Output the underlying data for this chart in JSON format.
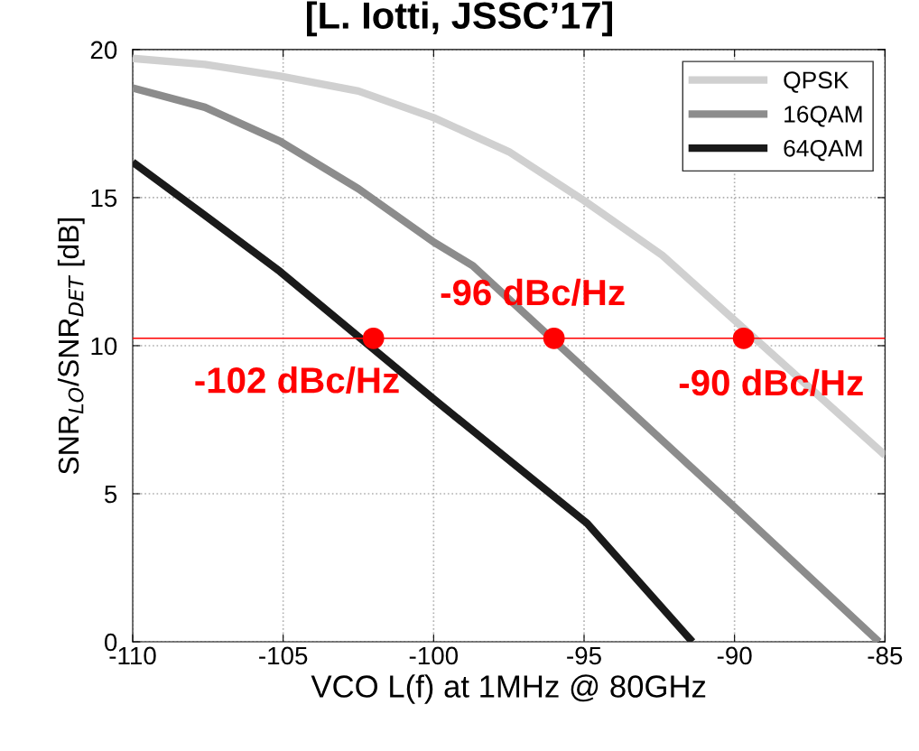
{
  "chart_data": {
    "type": "line",
    "title": "[L. Iotti, JSSC’17]",
    "xlabel": "VCO L(f) at 1MHz @ 80GHz",
    "ylabel": "SNR$_{LO}$/SNR$_{DET}$ [dB]",
    "xlim": [
      -110,
      -85
    ],
    "ylim": [
      0,
      20
    ],
    "xticks": [
      -110,
      -105,
      -100,
      -95,
      -90,
      -85
    ],
    "yticks": [
      0,
      5,
      10,
      15,
      20
    ],
    "grid": true,
    "legend": "top right",
    "line_style": "solid",
    "marker": "none",
    "series": [
      {
        "name": "QPSK",
        "color": "#d0d0d0",
        "x": [
          -110,
          -107.6,
          -105.1,
          -102.5,
          -100,
          -97.5,
          -95,
          -92.4,
          -85
        ],
        "values": [
          19.7,
          19.5,
          19.1,
          18.6,
          17.7,
          16.55,
          14.9,
          13.05,
          6.3
        ]
      },
      {
        "name": "16QAM",
        "color": "#8c8c8c",
        "x": [
          -110,
          -107.6,
          -105.1,
          -102.5,
          -100,
          -98.7,
          -90,
          -85.2
        ],
        "values": [
          18.7,
          18.05,
          16.9,
          15.3,
          13.5,
          12.7,
          4.55,
          0
        ]
      },
      {
        "name": "64QAM",
        "color": "#1a1a1a",
        "x": [
          -110,
          -107.6,
          -105.1,
          -100,
          -94.9,
          -91.4
        ],
        "values": [
          16.2,
          14.4,
          12.5,
          8.2,
          4.0,
          0
        ]
      },
      {
        "type": "scatter",
        "marker": "circle",
        "color": "#ff0000",
        "x": [
          -102,
          -96,
          -89.7
        ],
        "values": [
          10.25,
          10.25,
          10.25
        ]
      }
    ],
    "ref_lines": [
      {
        "axis": "y",
        "value": 10.25,
        "color": "#ff0000",
        "line_style": "solid"
      }
    ],
    "annotations": [
      {
        "text": "-102 dBc/Hz",
        "x": -102,
        "y": 10.25
      },
      {
        "text": "-96 dBc/Hz",
        "x": -96,
        "y": 10.25
      },
      {
        "text": "-90 dBc/Hz",
        "x": -89.7,
        "y": 10.25
      }
    ]
  }
}
